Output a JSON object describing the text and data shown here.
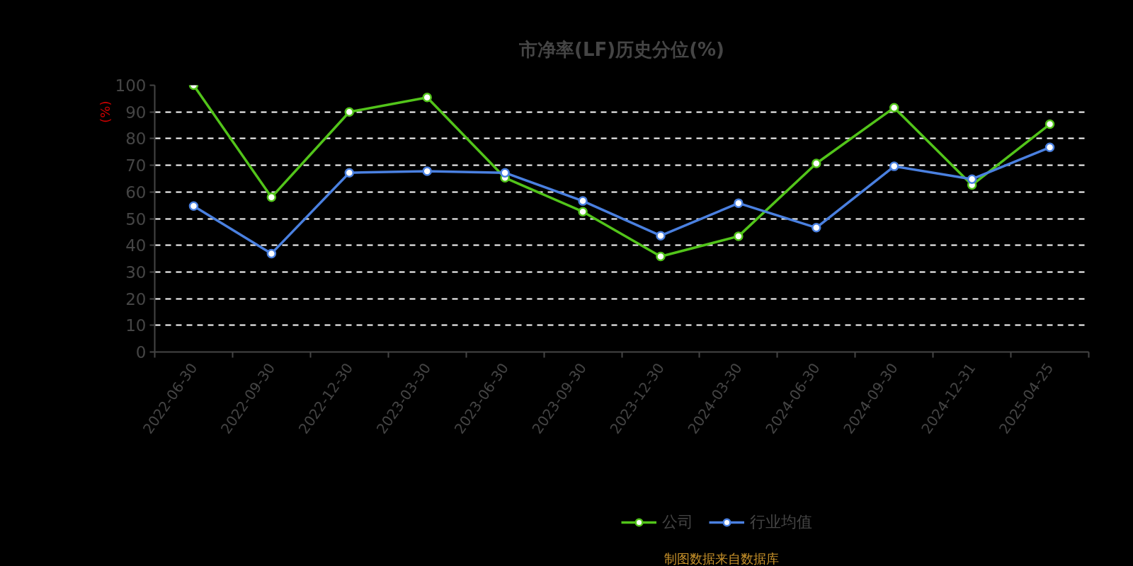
{
  "chart_data": {
    "type": "line",
    "title": "市净率(LF)历史分位(%)",
    "ylabel": "(%)",
    "categories": [
      "2022-06-30",
      "2022-09-30",
      "2022-12-30",
      "2023-03-30",
      "2023-06-30",
      "2023-09-30",
      "2023-12-30",
      "2024-03-30",
      "2024-06-30",
      "2024-09-30",
      "2024-12-31",
      "2025-04-25"
    ],
    "series": [
      {
        "name": "公司",
        "color": "#52c41a",
        "values": [
          100,
          58,
          90,
          95.4,
          65.3,
          52.6,
          35.8,
          43.4,
          70.7,
          91.6,
          62.6,
          85.4
        ]
      },
      {
        "name": "行业均值",
        "color": "#4a80e0",
        "values": [
          54.7,
          36.9,
          67.2,
          67.8,
          67.2,
          56.6,
          43.6,
          55.8,
          46.6,
          69.6,
          64.8,
          76.7
        ]
      }
    ],
    "ylim": [
      0,
      100
    ],
    "yticks": [
      0,
      10,
      20,
      30,
      40,
      50,
      60,
      70,
      80,
      90,
      100
    ],
    "grid": "y",
    "legend": "bottom",
    "marker": "circle",
    "line_style": "solid",
    "annotations": [
      "制图数据来自数据库"
    ]
  }
}
